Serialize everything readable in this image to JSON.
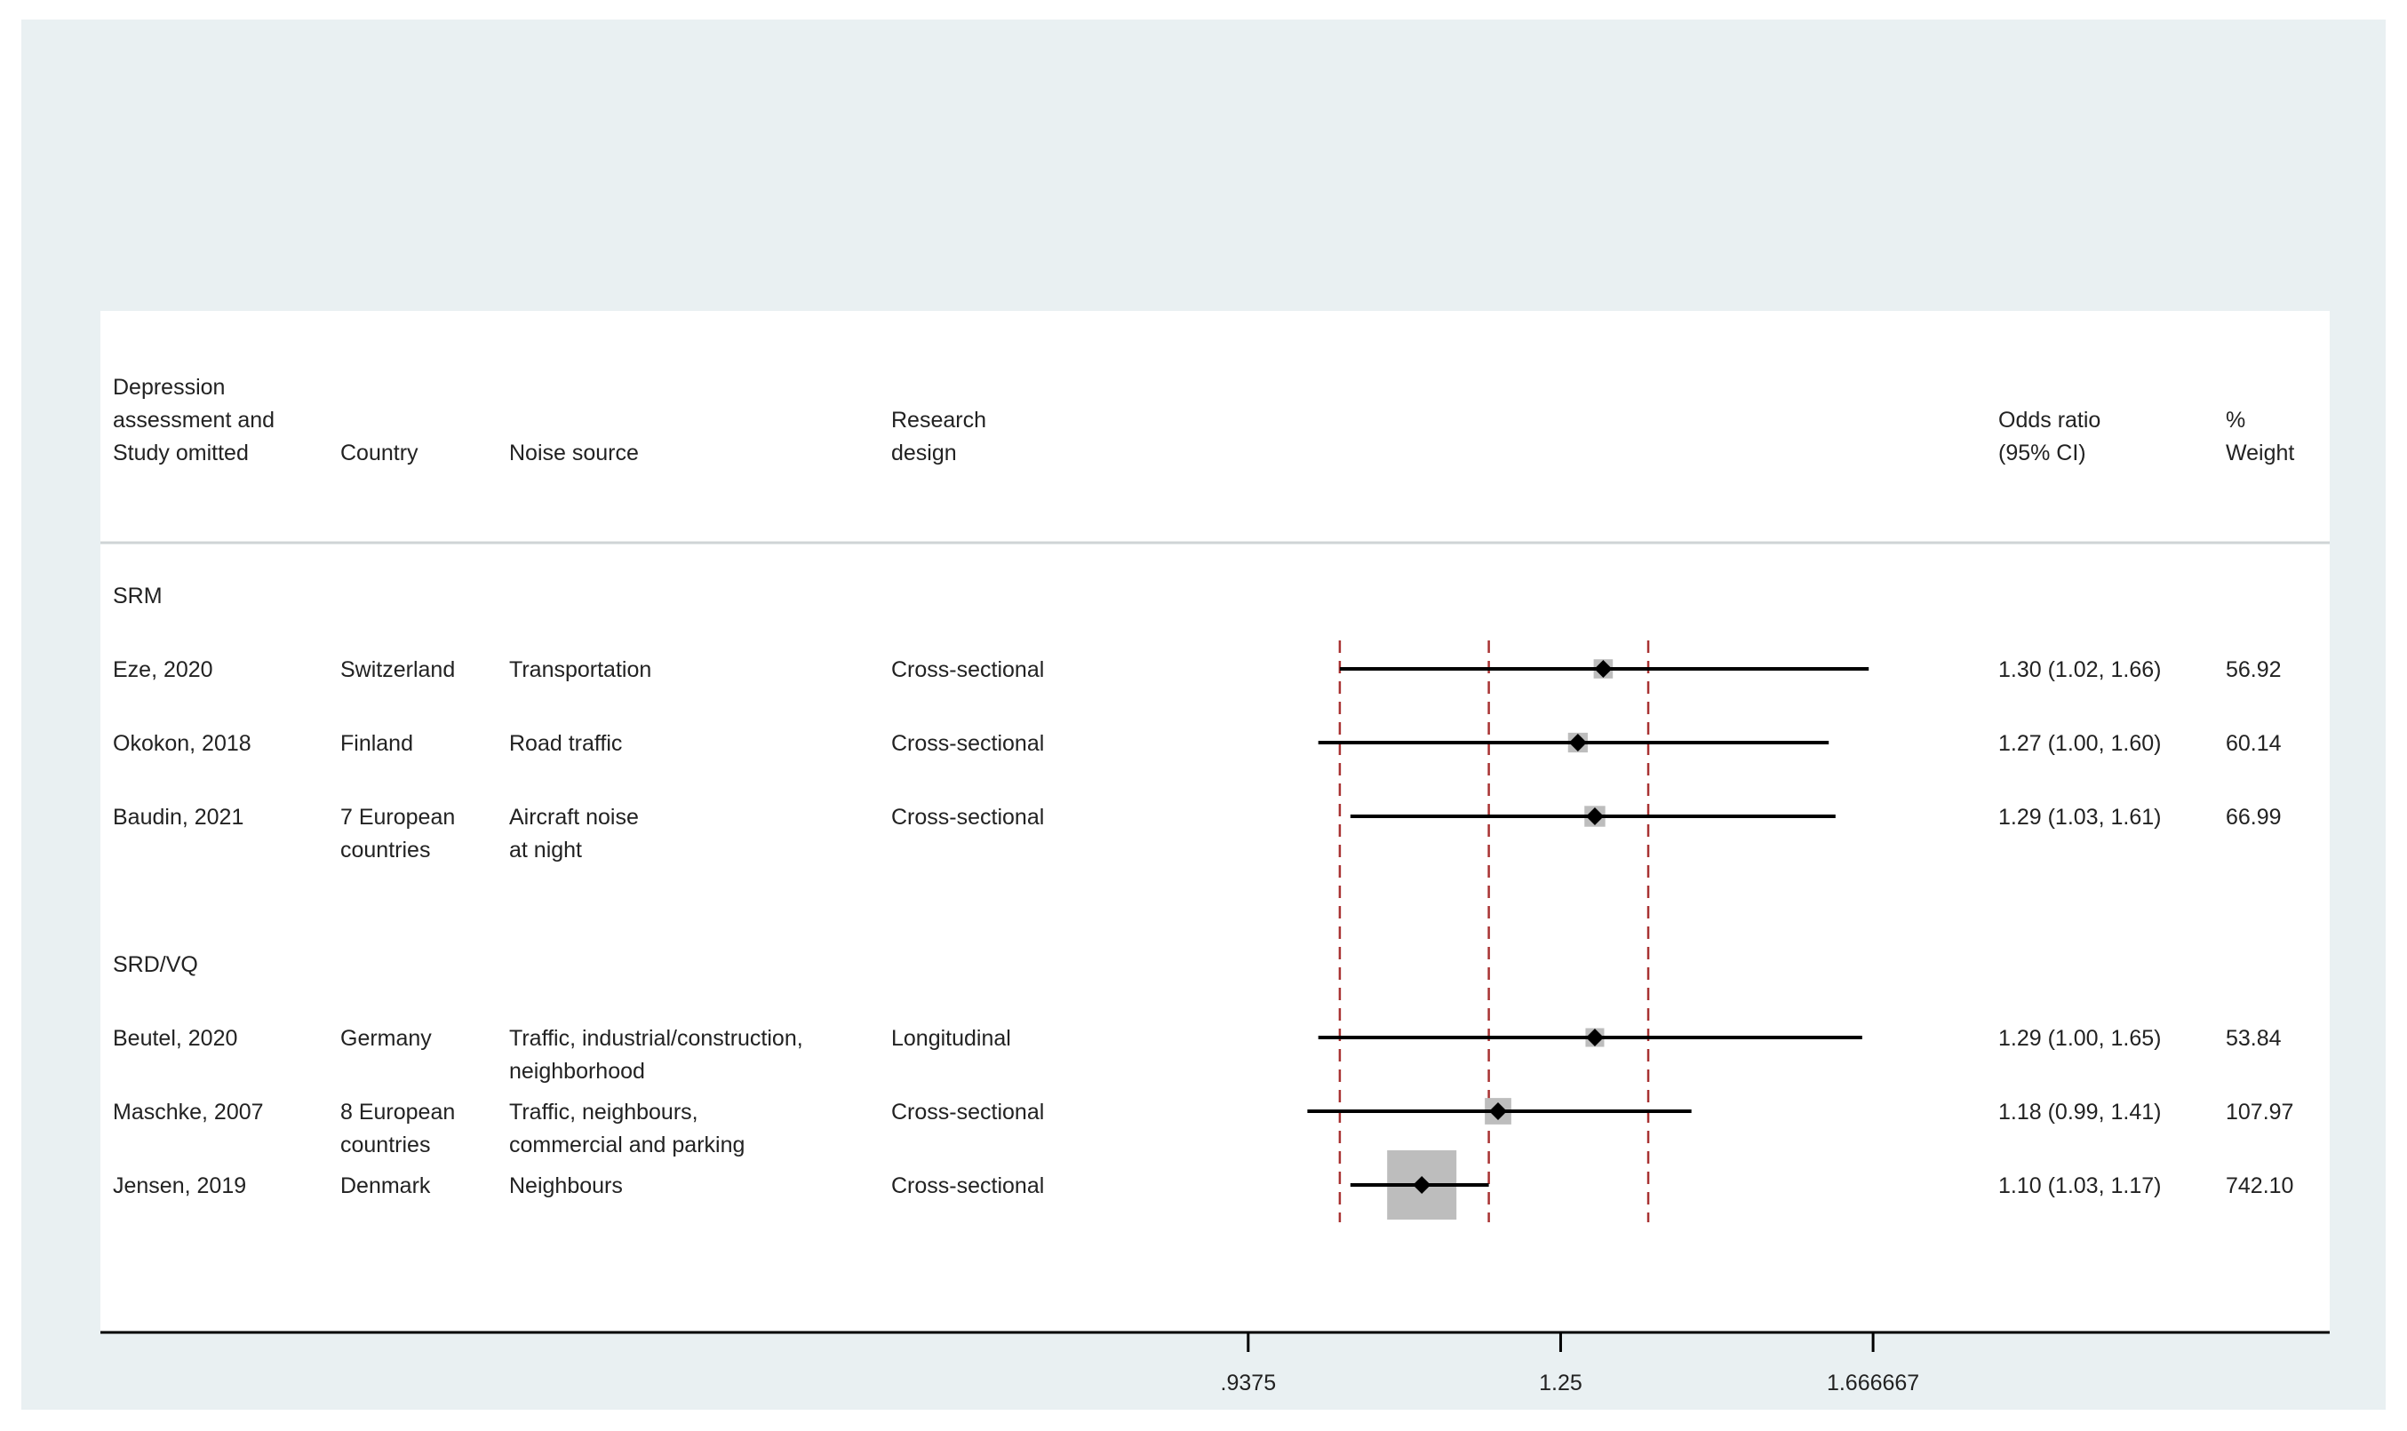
{
  "colors": {
    "outer_background": "#e9f0f2",
    "plot_background": "#ffffff",
    "reference_lines": "#a83232",
    "ci_line": "#000000",
    "weight_box": "#bdbdbd",
    "point_estimate": "#000000"
  },
  "headers": {
    "study": [
      "Depression",
      "assessment and",
      "Study omitted"
    ],
    "country": [
      "Country"
    ],
    "noise": [
      "Noise source"
    ],
    "design": [
      "Research",
      "design"
    ],
    "or": [
      "Odds ratio",
      "(95% CI)"
    ],
    "weight": [
      "%",
      "Weight"
    ]
  },
  "chart_data": {
    "type": "forest",
    "x_scale": "log",
    "xlim": [
      0.78,
      1.95
    ],
    "ticks": [
      {
        "value": 0.9375,
        "label": ".9375"
      },
      {
        "value": 1.25,
        "label": "1.25"
      },
      {
        "value": 1.666667,
        "label": "1.666667"
      }
    ],
    "reference_lines": [
      1.02,
      1.17,
      1.355
    ],
    "groups": [
      {
        "label": "SRM",
        "studies": [
          {
            "study": "Eze, 2020",
            "country": [
              "Switzerland"
            ],
            "noise": [
              "Transportation"
            ],
            "design": "Cross-sectional",
            "or": 1.3,
            "lo": 1.02,
            "hi": 1.66,
            "or_text": "1.30 (1.02, 1.66)",
            "weight": "56.92",
            "weight_value": 56.92
          },
          {
            "study": "Okokon, 2018",
            "country": [
              "Finland"
            ],
            "noise": [
              "Road traffic"
            ],
            "design": "Cross-sectional",
            "or": 1.27,
            "lo": 1.0,
            "hi": 1.6,
            "or_text": "1.27 (1.00, 1.60)",
            "weight": "60.14",
            "weight_value": 60.14
          },
          {
            "study": "Baudin, 2021",
            "country": [
              "7 European",
              "countries"
            ],
            "noise": [
              "Aircraft noise",
              "at night"
            ],
            "design": "Cross-sectional",
            "or": 1.29,
            "lo": 1.03,
            "hi": 1.61,
            "or_text": "1.29 (1.03, 1.61)",
            "weight": "66.99",
            "weight_value": 66.99
          }
        ]
      },
      {
        "label": "SRD/VQ",
        "studies": [
          {
            "study": "Beutel, 2020",
            "country": [
              "Germany"
            ],
            "noise": [
              "Traffic, industrial/construction,",
              "neighborhood"
            ],
            "design": "Longitudinal",
            "or": 1.29,
            "lo": 1.0,
            "hi": 1.65,
            "or_text": "1.29 (1.00, 1.65)",
            "weight": "53.84",
            "weight_value": 53.84
          },
          {
            "study": "Maschke, 2007",
            "country": [
              "8 European",
              "countries"
            ],
            "noise": [
              "Traffic, neighbours,",
              "commercial and parking"
            ],
            "design": "Cross-sectional",
            "or": 1.18,
            "lo": 0.99,
            "hi": 1.41,
            "or_text": "1.18 (0.99, 1.41)",
            "weight": "107.97",
            "weight_value": 107.97
          },
          {
            "study": "Jensen, 2019",
            "country": [
              "Denmark"
            ],
            "noise": [
              "Neighbours"
            ],
            "design": "Cross-sectional",
            "or": 1.1,
            "lo": 1.03,
            "hi": 1.17,
            "or_text": "1.10 (1.03, 1.17)",
            "weight": "742.10",
            "weight_value": 742.1
          }
        ]
      }
    ]
  }
}
